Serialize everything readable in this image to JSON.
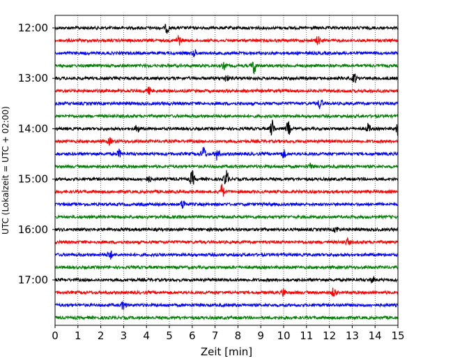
{
  "chart_data": {
    "type": "line",
    "subtype": "helicorder",
    "xlabel": "Zeit  [min]",
    "ylabel": "UTC (Lokalzeit = UTC + 02:00)",
    "xlim": [
      0,
      15
    ],
    "x_ticks": [
      0,
      1,
      2,
      3,
      4,
      5,
      6,
      7,
      8,
      9,
      10,
      11,
      12,
      13,
      14,
      15
    ],
    "y_tick_labels": [
      "12:00",
      "13:00",
      "14:00",
      "15:00",
      "16:00",
      "17:00"
    ],
    "trace_colors": [
      "#000000",
      "#ff0000",
      "#0000ff",
      "#008000"
    ],
    "traces_per_hour": 4,
    "trace_minutes": 15,
    "traces": [
      {
        "start": "12:00",
        "color": "#000000",
        "events": [
          [
            4.9,
            0.6
          ]
        ]
      },
      {
        "start": "12:15",
        "color": "#ff0000",
        "events": [
          [
            5.4,
            0.7
          ],
          [
            11.5,
            0.5
          ]
        ]
      },
      {
        "start": "12:30",
        "color": "#0000ff",
        "events": [
          [
            6.1,
            0.4
          ]
        ]
      },
      {
        "start": "12:45",
        "color": "#008000",
        "events": [
          [
            8.7,
            1.0
          ],
          [
            7.4,
            0.4
          ]
        ]
      },
      {
        "start": "13:00",
        "color": "#000000",
        "events": [
          [
            13.1,
            0.6
          ],
          [
            7.5,
            0.4
          ]
        ]
      },
      {
        "start": "13:15",
        "color": "#ff0000",
        "events": [
          [
            4.1,
            0.4
          ]
        ]
      },
      {
        "start": "13:30",
        "color": "#0000ff",
        "events": [
          [
            11.6,
            0.7
          ]
        ]
      },
      {
        "start": "13:45",
        "color": "#008000",
        "events": []
      },
      {
        "start": "14:00",
        "color": "#000000",
        "events": [
          [
            9.5,
            1.1
          ],
          [
            10.2,
            0.9
          ],
          [
            13.7,
            0.6
          ],
          [
            3.6,
            0.5
          ],
          [
            15.0,
            0.9
          ]
        ]
      },
      {
        "start": "14:15",
        "color": "#ff0000",
        "events": [
          [
            2.4,
            0.4
          ]
        ]
      },
      {
        "start": "14:30",
        "color": "#0000ff",
        "events": [
          [
            6.5,
            0.9
          ],
          [
            7.1,
            0.8
          ],
          [
            2.8,
            0.5
          ],
          [
            10.0,
            0.5
          ]
        ]
      },
      {
        "start": "14:45",
        "color": "#008000",
        "events": [
          [
            11.2,
            0.4
          ]
        ]
      },
      {
        "start": "15:00",
        "color": "#000000",
        "events": [
          [
            6.0,
            1.0
          ],
          [
            7.5,
            1.2
          ],
          [
            4.1,
            0.4
          ]
        ]
      },
      {
        "start": "15:15",
        "color": "#ff0000",
        "events": [
          [
            7.3,
            0.9
          ]
        ]
      },
      {
        "start": "15:30",
        "color": "#0000ff",
        "events": [
          [
            5.6,
            0.6
          ]
        ]
      },
      {
        "start": "15:45",
        "color": "#008000",
        "events": []
      },
      {
        "start": "16:00",
        "color": "#000000",
        "events": [
          [
            12.3,
            0.4
          ]
        ]
      },
      {
        "start": "16:15",
        "color": "#ff0000",
        "events": [
          [
            12.8,
            0.4
          ]
        ]
      },
      {
        "start": "16:30",
        "color": "#0000ff",
        "events": [
          [
            2.4,
            0.6
          ]
        ]
      },
      {
        "start": "16:45",
        "color": "#008000",
        "events": []
      },
      {
        "start": "17:00",
        "color": "#000000",
        "events": [
          [
            13.9,
            0.4
          ]
        ]
      },
      {
        "start": "17:15",
        "color": "#ff0000",
        "events": [
          [
            10.0,
            0.5
          ],
          [
            12.2,
            0.6
          ]
        ]
      },
      {
        "start": "17:30",
        "color": "#0000ff",
        "events": [
          [
            3.0,
            0.6
          ]
        ]
      },
      {
        "start": "17:45",
        "color": "#008000",
        "events": []
      }
    ],
    "grid": "vertical-dotted",
    "legend": "none"
  }
}
